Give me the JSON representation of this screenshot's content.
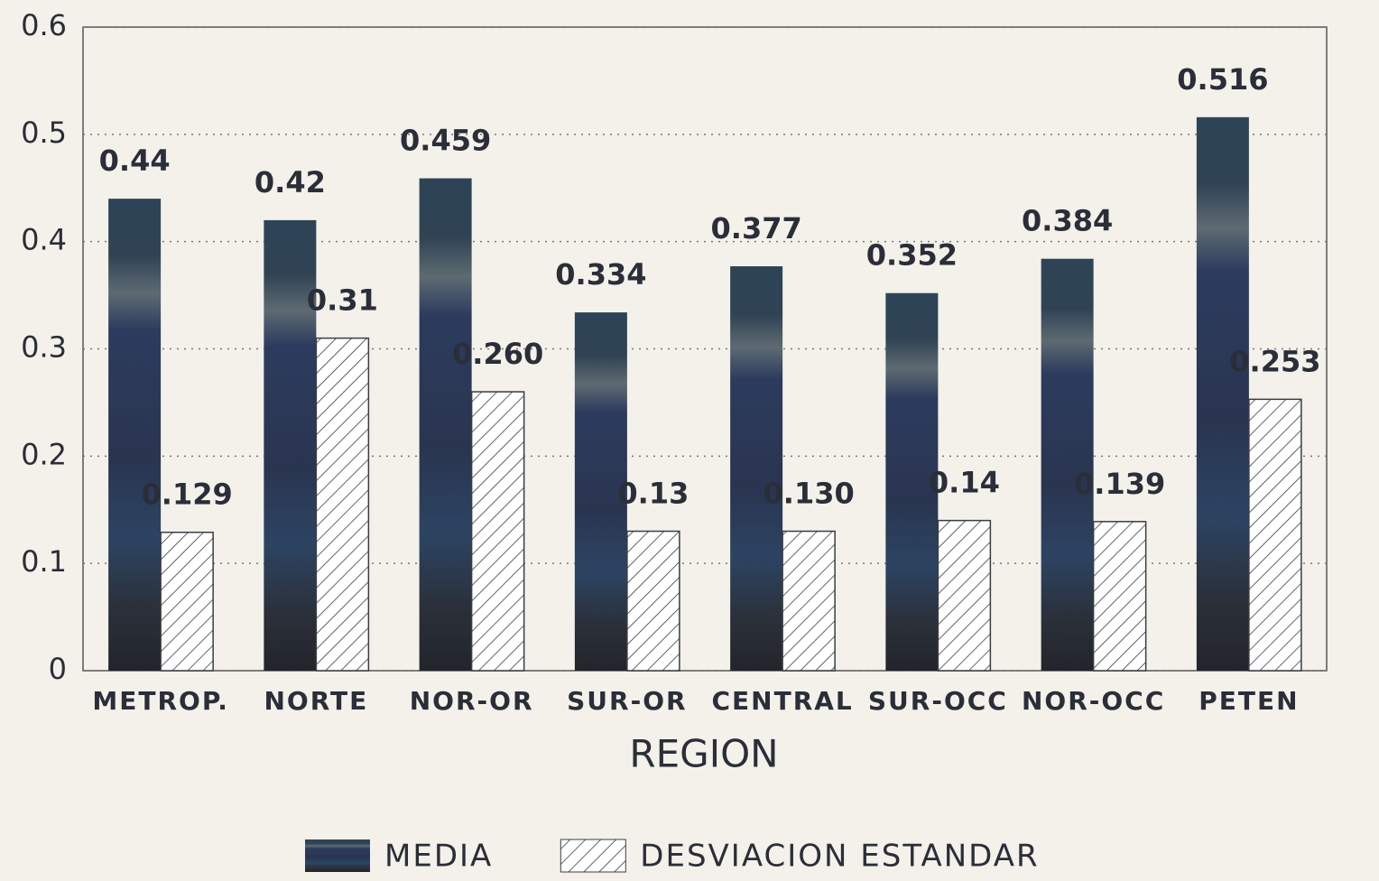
{
  "chart_data": {
    "type": "bar",
    "x_label": "REGION",
    "categories": [
      "METROP.",
      "NORTE",
      "NOR-OR",
      "SUR-OR",
      "CENTRAL",
      "SUR-OCC",
      "NOR-OCC",
      "PETEN"
    ],
    "series": [
      {
        "name": "MEDIA",
        "color": "#2b3648",
        "values": [
          0.44,
          0.42,
          0.459,
          0.334,
          0.377,
          0.352,
          0.384,
          0.516
        ],
        "value_labels": [
          "0.44",
          "0.42",
          "0.459",
          "0.334",
          "0.377",
          "0.352",
          "0.384",
          "0.516"
        ]
      },
      {
        "name": "DESVIACION ESTANDAR",
        "color": "#ffffff",
        "values": [
          0.129,
          0.31,
          0.26,
          0.13,
          0.13,
          0.14,
          0.139,
          0.253
        ],
        "value_labels": [
          "0.129",
          "0.31",
          "0.260",
          "0.13",
          "0.130",
          "0.14",
          "0.139",
          "0.253"
        ]
      }
    ],
    "ylim": [
      0,
      0.6
    ],
    "yticks": [
      0,
      0.1,
      0.2,
      0.3,
      0.4,
      0.5,
      0.6
    ],
    "grid": true,
    "legend": "bottom"
  }
}
